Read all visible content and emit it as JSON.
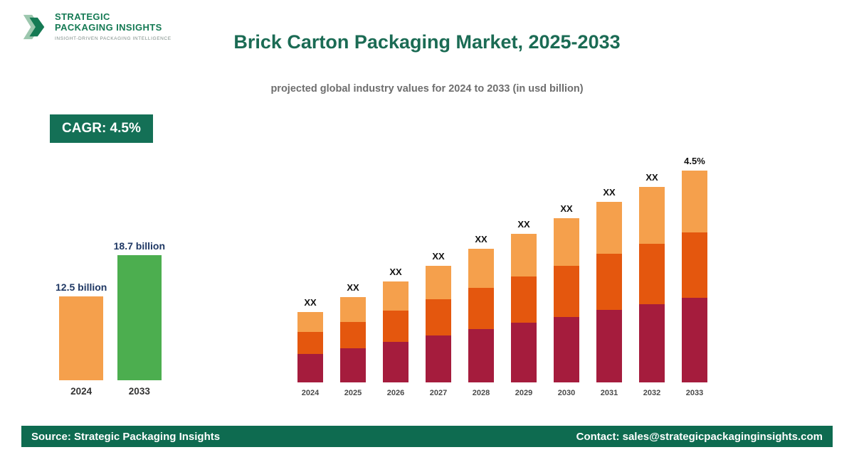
{
  "logo": {
    "name_line1": "STRATEGIC",
    "name_line2": "PACKAGING INSIGHTS",
    "tagline": "INSIGHT-DRIVEN PACKAGING INTELLIGENCE"
  },
  "header": {
    "title": "Brick Carton Packaging Market, 2025-2033",
    "subtitle": "projected global industry values for 2024 to 2033 (in usd billion)"
  },
  "cagr_badge": "CAGR: 4.5%",
  "colors": {
    "brand_green": "#157a54",
    "title_green": "#1b6b54",
    "badge_bg": "#147056",
    "footer_bg": "#0e6b50",
    "bar_green": "#4cae4f",
    "bar_orange_light": "#f5a04c",
    "bar_orange_dark": "#e4570e",
    "bar_maroon": "#a51c3d"
  },
  "chart_data": [
    {
      "type": "bar",
      "categories": [
        "2024",
        "2033"
      ],
      "values": [
        12.5,
        18.7
      ],
      "value_labels": [
        "12.5 billion",
        "18.7 billion"
      ],
      "bar_colors": [
        "#f5a04c",
        "#4cae4f"
      ],
      "ylabel": "usd billion"
    },
    {
      "type": "stacked-bar",
      "categories": [
        "2024",
        "2025",
        "2026",
        "2027",
        "2028",
        "2029",
        "2030",
        "2031",
        "2032",
        "2033"
      ],
      "bar_labels": [
        "XX",
        "XX",
        "XX",
        "XX",
        "XX",
        "XX",
        "XX",
        "XX",
        "XX",
        "4.5%"
      ],
      "series": [
        {
          "name": "segment-bottom",
          "color": "#a51c3d",
          "values": [
            40,
            48,
            57,
            66,
            75,
            84,
            92,
            102,
            110,
            119
          ]
        },
        {
          "name": "segment-middle",
          "color": "#e4570e",
          "values": [
            31,
            37,
            44,
            51,
            58,
            65,
            72,
            79,
            85,
            92
          ]
        },
        {
          "name": "segment-top",
          "color": "#f5a04c",
          "values": [
            28,
            35,
            41,
            47,
            55,
            60,
            67,
            73,
            80,
            87
          ]
        }
      ],
      "legend": "off",
      "grid": "off"
    }
  ],
  "footer": {
    "source": "Source: Strategic Packaging Insights",
    "contact": "Contact: sales@strategicpackaginginsights.com"
  }
}
